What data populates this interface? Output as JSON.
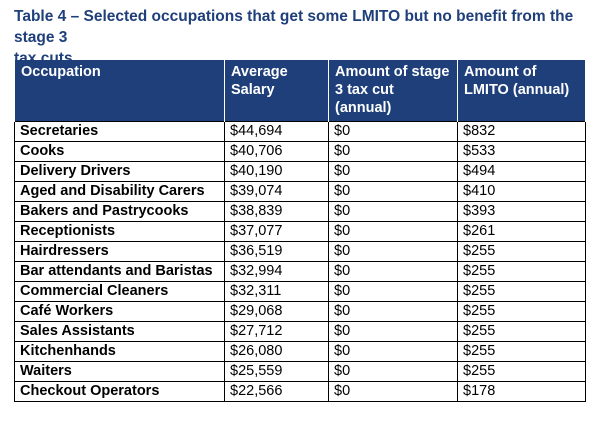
{
  "caption": {
    "line1": "Table 4 – Selected occupations that get some LMITO but no benefit from the stage 3",
    "line2": "tax cuts"
  },
  "table": {
    "headers": {
      "occupation": "Occupation",
      "salary_line1": "Average",
      "salary_line2": "Salary",
      "taxcut_line1": "Amount of stage",
      "taxcut_line2": "3 tax cut",
      "taxcut_line3": "(annual)",
      "lmito_line1": "Amount of",
      "lmito_line2": "LMITO (annual)"
    },
    "rows": [
      {
        "occupation": "Secretaries",
        "salary": "$44,694",
        "tax_cut": "$0",
        "lmito": "$832"
      },
      {
        "occupation": "Cooks",
        "salary": "$40,706",
        "tax_cut": "$0",
        "lmito": "$533"
      },
      {
        "occupation": "Delivery Drivers",
        "salary": "$40,190",
        "tax_cut": "$0",
        "lmito": "$494"
      },
      {
        "occupation": "Aged and Disability Carers",
        "salary": "$39,074",
        "tax_cut": "$0",
        "lmito": "$410"
      },
      {
        "occupation": "Bakers and Pastrycooks",
        "salary": "$38,839",
        "tax_cut": "$0",
        "lmito": "$393"
      },
      {
        "occupation": "Receptionists",
        "salary": "$37,077",
        "tax_cut": "$0",
        "lmito": "$261"
      },
      {
        "occupation": "Hairdressers",
        "salary": "$36,519",
        "tax_cut": "$0",
        "lmito": "$255"
      },
      {
        "occupation": "Bar attendants and Baristas",
        "salary": "$32,994",
        "tax_cut": "$0",
        "lmito": "$255"
      },
      {
        "occupation": "Commercial Cleaners",
        "salary": "$32,311",
        "tax_cut": "$0",
        "lmito": "$255"
      },
      {
        "occupation": "Café Workers",
        "salary": "$29,068",
        "tax_cut": "$0",
        "lmito": "$255"
      },
      {
        "occupation": "Sales Assistants",
        "salary": "$27,712",
        "tax_cut": "$0",
        "lmito": "$255"
      },
      {
        "occupation": "Kitchenhands",
        "salary": "$26,080",
        "tax_cut": "$0",
        "lmito": "$255"
      },
      {
        "occupation": "Waiters",
        "salary": "$25,559",
        "tax_cut": "$0",
        "lmito": "$255"
      },
      {
        "occupation": "Checkout Operators",
        "salary": "$22,566",
        "tax_cut": "$0",
        "lmito": "$178"
      }
    ]
  }
}
